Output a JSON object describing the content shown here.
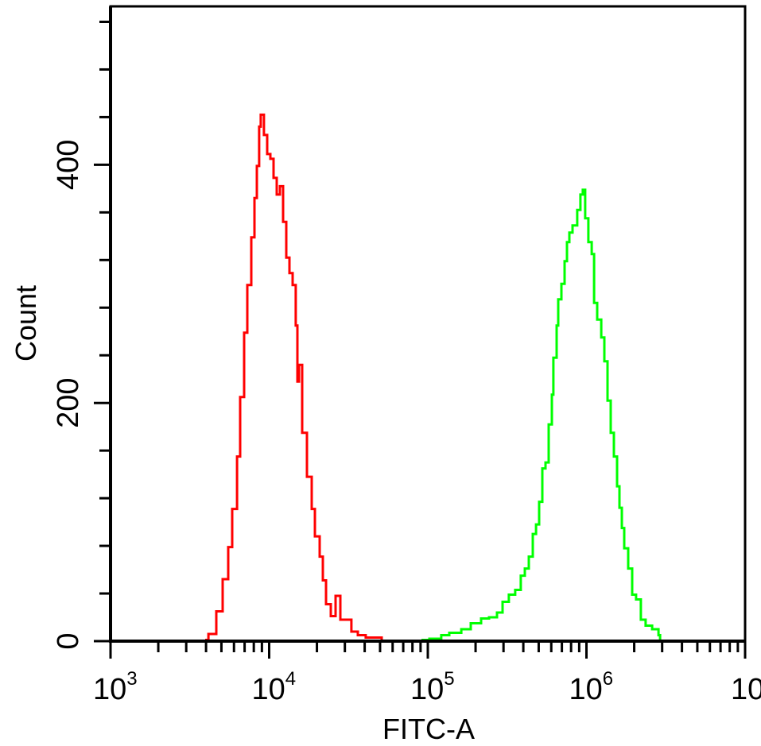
{
  "chart_data": {
    "type": "line",
    "xlabel": "FITC-A",
    "ylabel": "Count",
    "x_scale": "log",
    "xlim": [
      1000,
      10000000
    ],
    "ylim": [
      0,
      533
    ],
    "x_tick_labels": [
      {
        "base": "10",
        "exp": "3"
      },
      {
        "base": "10",
        "exp": "4"
      },
      {
        "base": "10",
        "exp": "5"
      },
      {
        "base": "10",
        "exp": "6"
      },
      {
        "base": "10",
        "exp": ""
      }
    ],
    "y_tick_labels": [
      "0",
      "200",
      "400"
    ],
    "y_minor_step": 40,
    "grid": false,
    "legend": "none",
    "series": [
      {
        "color": "#ff0000",
        "x": [
          3950,
          4140,
          4640,
          5090,
          5520,
          5850,
          6270,
          6560,
          6950,
          7280,
          7710,
          8080,
          8360,
          8650,
          8850,
          9270,
          9710,
          10180,
          10660,
          11160,
          11690,
          12240,
          12820,
          13420,
          14050,
          14710,
          15060,
          15410,
          16140,
          17300,
          18540,
          19410,
          20800,
          21790,
          22820,
          24450,
          26210,
          28100,
          30110,
          33000,
          36200,
          40600,
          51200
        ],
        "y": [
          1,
          6,
          25,
          52,
          79,
          111,
          155,
          205,
          259,
          299,
          339,
          372,
          399,
          432,
          442,
          425,
          409,
          405,
          389,
          375,
          382,
          352,
          322,
          309,
          299,
          265,
          218,
          232,
          175,
          138,
          111,
          88,
          71,
          51,
          31,
          21,
          38,
          18,
          18,
          8,
          5,
          3,
          1
        ]
      },
      {
        "color": "#00ff00",
        "x": [
          91200,
          102300,
          121600,
          136500,
          162500,
          186500,
          216800,
          243200,
          272900,
          295800,
          324300,
          355700,
          385600,
          409000,
          433300,
          459000,
          481000,
          503000,
          527000,
          552000,
          578000,
          605000,
          619000,
          649000,
          664000,
          695000,
          728000,
          754000,
          780000,
          817000,
          875000,
          916000,
          948000,
          982000,
          1028000,
          1079000,
          1117000,
          1169000,
          1239000,
          1297000,
          1358000,
          1422000,
          1489000,
          1560000,
          1614000,
          1671000,
          1730000,
          1833000,
          1941000,
          2056000,
          2203000,
          2361000,
          2594000,
          2844000,
          2911000
        ],
        "y": [
          1,
          2,
          5,
          7,
          10,
          15,
          19,
          20,
          24,
          33,
          39,
          43,
          55,
          61,
          71,
          90,
          98,
          117,
          145,
          150,
          182,
          207,
          238,
          265,
          287,
          300,
          319,
          335,
          343,
          349,
          362,
          375,
          379,
          355,
          335,
          325,
          284,
          270,
          255,
          235,
          202,
          175,
          155,
          130,
          112,
          95,
          78,
          61,
          39,
          35,
          18,
          13,
          10,
          5,
          1
        ]
      }
    ]
  }
}
